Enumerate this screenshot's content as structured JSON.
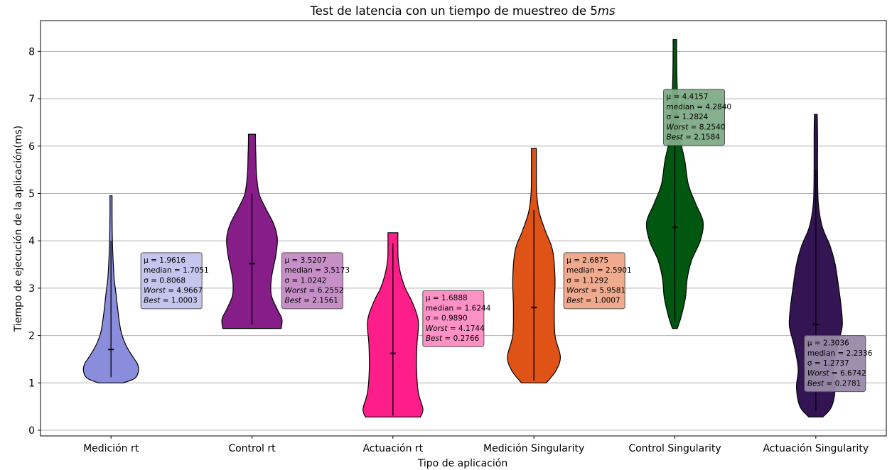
{
  "chart_data": {
    "type": "violin",
    "title": "Test de latencia con un tiempo de muestreo de 5",
    "title_unit": "ms",
    "xlabel": "Tipo de aplicación",
    "ylabel": "Tiempo de ejecución de la aplicación(ms)",
    "ylim": [
      -0.12,
      8.65
    ],
    "yticks": [
      "0",
      "1",
      "2",
      "3",
      "4",
      "5",
      "6",
      "7",
      "8"
    ],
    "grid": "horizontal",
    "categories": [
      "Medición rt",
      "Control rt",
      "Actuación rt",
      "Medición Singularity",
      "Control Singularity",
      "Actuación Singularity"
    ],
    "series": [
      {
        "name": "Medición rt",
        "color": "#8a8cdc",
        "box_color": "#c2c3ed",
        "mean": 1.9616,
        "median": 1.7051,
        "std": 0.8068,
        "worst": 4.9667,
        "best": 1.0003,
        "whisker": [
          1.12,
          4.0
        ],
        "ymin": 1.0,
        "ymax": 4.95,
        "profile": [
          [
            1.0,
            0.35
          ],
          [
            1.1,
            0.68
          ],
          [
            1.25,
            0.78
          ],
          [
            1.4,
            0.75
          ],
          [
            1.55,
            0.62
          ],
          [
            1.8,
            0.42
          ],
          [
            2.1,
            0.28
          ],
          [
            2.5,
            0.2
          ],
          [
            2.9,
            0.14
          ],
          [
            3.2,
            0.09
          ],
          [
            3.6,
            0.06
          ],
          [
            4.0,
            0.04
          ],
          [
            4.5,
            0.03
          ],
          [
            4.95,
            0.03
          ]
        ],
        "stats_lines": [
          "μ = 1.9616",
          "median = 1.7051",
          "σ = 0.8068",
          "Worst = 4.9667",
          "Best = 1.0003"
        ],
        "box_anchor": [
          2.1,
          3.75
        ]
      },
      {
        "name": "Control rt",
        "color": "#861d89",
        "box_color": "#c38ac4",
        "mean": 3.5207,
        "median": 3.5173,
        "std": 1.0242,
        "worst": 6.2552,
        "best": 2.1561,
        "whisker": [
          2.23,
          5.0
        ],
        "ymin": 2.15,
        "ymax": 6.25,
        "profile": [
          [
            2.15,
            0.83
          ],
          [
            2.35,
            0.85
          ],
          [
            2.55,
            0.72
          ],
          [
            2.85,
            0.55
          ],
          [
            3.2,
            0.55
          ],
          [
            3.7,
            0.68
          ],
          [
            4.05,
            0.72
          ],
          [
            4.35,
            0.62
          ],
          [
            4.7,
            0.38
          ],
          [
            5.0,
            0.2
          ],
          [
            5.4,
            0.13
          ],
          [
            5.8,
            0.11
          ],
          [
            6.1,
            0.1
          ],
          [
            6.25,
            0.1
          ]
        ],
        "stats_lines": [
          "μ = 3.5207",
          "median = 3.5173",
          "σ = 1.0242",
          "Worst = 6.2552",
          "Best = 2.1561"
        ],
        "box_anchor": [
          2.1,
          3.75
        ]
      },
      {
        "name": "Actuación rt",
        "color": "#fe1e8a",
        "box_color": "#fe8bc3",
        "mean": 1.6888,
        "median": 1.6244,
        "std": 0.989,
        "worst": 4.1744,
        "best": 0.2766,
        "whisker": [
          0.31,
          3.95
        ],
        "ymin": 0.28,
        "ymax": 4.17,
        "profile": [
          [
            0.28,
            0.78
          ],
          [
            0.45,
            0.85
          ],
          [
            0.8,
            0.72
          ],
          [
            1.3,
            0.67
          ],
          [
            1.8,
            0.68
          ],
          [
            2.3,
            0.72
          ],
          [
            2.7,
            0.55
          ],
          [
            3.0,
            0.35
          ],
          [
            3.3,
            0.22
          ],
          [
            3.6,
            0.15
          ],
          [
            3.9,
            0.14
          ],
          [
            4.17,
            0.14
          ]
        ],
        "stats_lines": [
          "μ = 1.6888",
          "median = 1.6244",
          "σ = 0.9890",
          "Worst = 4.1744",
          "Best = 0.2766"
        ],
        "box_anchor": [
          2.1,
          2.95
        ]
      },
      {
        "name": "Medición Singularity",
        "color": "#e05316",
        "box_color": "#efa789",
        "mean": 2.6875,
        "median": 2.5901,
        "std": 1.1292,
        "worst": 5.9581,
        "best": 1.0007,
        "whisker": [
          1.05,
          4.65
        ],
        "ymin": 1.0,
        "ymax": 5.95,
        "profile": [
          [
            1.0,
            0.35
          ],
          [
            1.25,
            0.62
          ],
          [
            1.55,
            0.75
          ],
          [
            2.0,
            0.6
          ],
          [
            2.6,
            0.58
          ],
          [
            3.2,
            0.6
          ],
          [
            3.8,
            0.53
          ],
          [
            4.2,
            0.33
          ],
          [
            4.6,
            0.15
          ],
          [
            5.0,
            0.08
          ],
          [
            5.5,
            0.07
          ],
          [
            5.95,
            0.07
          ]
        ],
        "stats_lines": [
          "μ = 2.6875",
          "median = 2.5901",
          "σ = 1.1292",
          "Worst = 5.9581",
          "Best = 1.0007"
        ],
        "box_anchor": [
          2.1,
          3.75
        ]
      },
      {
        "name": "Control Singularity",
        "color": "#005710",
        "box_color": "#7fab87",
        "mean": 4.4157,
        "median": 4.284,
        "std": 1.2824,
        "worst": 8.254,
        "best": 2.1584,
        "whisker": [
          2.3,
          6.7
        ],
        "ymin": 2.15,
        "ymax": 8.25,
        "profile": [
          [
            2.15,
            0.07
          ],
          [
            2.4,
            0.18
          ],
          [
            2.8,
            0.3
          ],
          [
            3.2,
            0.35
          ],
          [
            3.6,
            0.48
          ],
          [
            4.0,
            0.72
          ],
          [
            4.4,
            0.8
          ],
          [
            4.8,
            0.58
          ],
          [
            5.2,
            0.38
          ],
          [
            5.7,
            0.28
          ],
          [
            6.2,
            0.14
          ],
          [
            6.8,
            0.09
          ],
          [
            7.4,
            0.06
          ],
          [
            8.0,
            0.05
          ],
          [
            8.25,
            0.05
          ]
        ],
        "stats_lines": [
          "μ = 4.4157",
          "median = 4.2840",
          "σ = 1.2824",
          "Worst = 8.2540",
          "Best = 2.1584"
        ],
        "box_anchor": [
          -0.8,
          7.2
        ]
      },
      {
        "name": "Actuación Singularity",
        "color": "#331553",
        "box_color": "#998aa9",
        "mean": 2.3036,
        "median": 2.2336,
        "std": 1.2737,
        "worst": 6.6742,
        "best": 0.2781,
        "whisker": [
          0.4,
          5.5
        ],
        "ymin": 0.28,
        "ymax": 6.67,
        "profile": [
          [
            0.28,
            0.2
          ],
          [
            0.5,
            0.45
          ],
          [
            0.9,
            0.55
          ],
          [
            1.3,
            0.5
          ],
          [
            1.8,
            0.62
          ],
          [
            2.2,
            0.75
          ],
          [
            2.6,
            0.72
          ],
          [
            3.0,
            0.65
          ],
          [
            3.5,
            0.55
          ],
          [
            3.9,
            0.4
          ],
          [
            4.3,
            0.18
          ],
          [
            4.8,
            0.07
          ],
          [
            5.5,
            0.05
          ],
          [
            6.2,
            0.05
          ],
          [
            6.67,
            0.04
          ]
        ],
        "stats_lines": [
          "μ = 2.3036",
          "median = 2.2336",
          "σ = 1.2737",
          "Worst = 6.6742",
          "Best = 0.2781"
        ],
        "box_anchor": [
          -0.8,
          2.0
        ]
      }
    ]
  }
}
